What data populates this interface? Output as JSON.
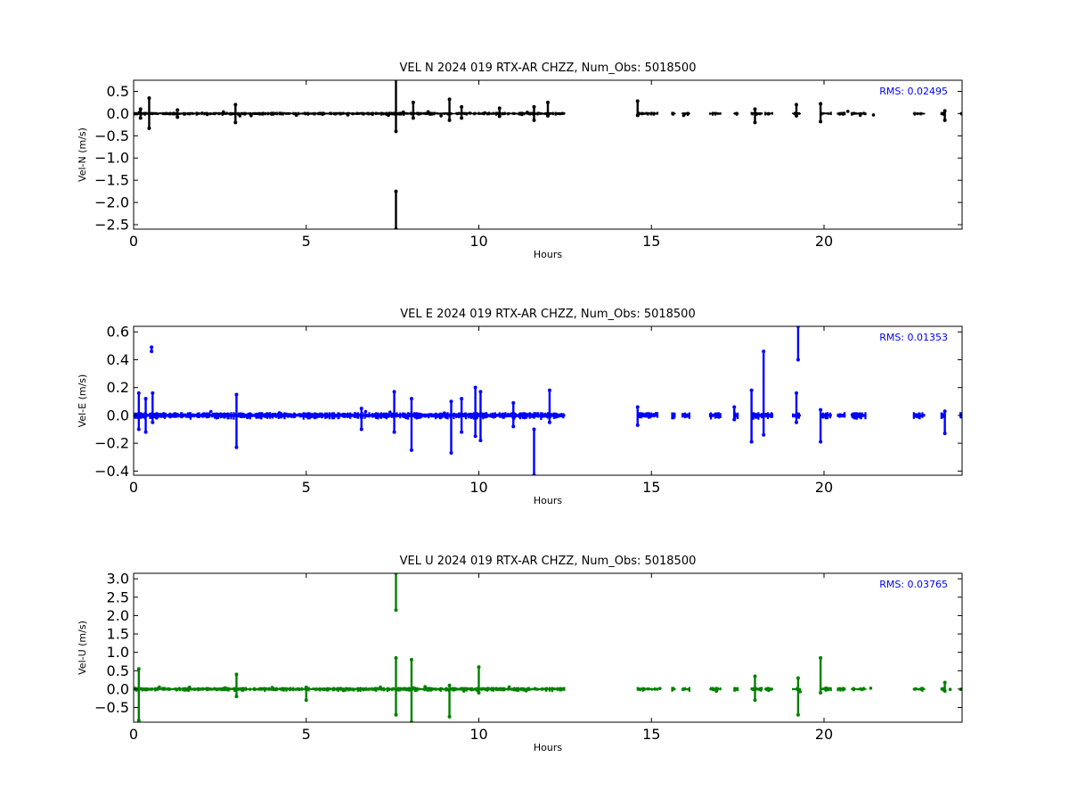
{
  "figure": {
    "background": "#ffffff"
  },
  "chart_data": [
    {
      "type": "scatter",
      "title": "VEL N 2024 019 RTX-AR  CHZZ, Num_Obs: 5018500",
      "xlabel": "Hours",
      "ylabel": "Vel-N (m/s)",
      "xlim": [
        0,
        24
      ],
      "ylim": [
        -2.6,
        0.75
      ],
      "xticks": [
        0,
        5,
        10,
        15,
        20
      ],
      "yticks": [
        0.5,
        0.0,
        -0.5,
        -1.0,
        -1.5,
        -2.0,
        -2.5
      ],
      "ytick_labels": [
        "0.5",
        "0.0",
        "−0.5",
        "−1.0",
        "−1.5",
        "−2.0",
        "−2.5"
      ],
      "color": "#000000",
      "rms_label": "RMS:  0.02495",
      "rms_color": "#0000ff",
      "grid": false,
      "series": [
        {
          "noise_amplitude": 0.02,
          "segments": [
            [
              0.0,
              12.5
            ],
            [
              14.6,
              15.2
            ],
            [
              15.6,
              15.7
            ],
            [
              15.9,
              16.1
            ],
            [
              16.7,
              17.0
            ],
            [
              17.4,
              17.5
            ],
            [
              17.9,
              18.2
            ],
            [
              18.3,
              18.5
            ],
            [
              19.1,
              19.3
            ],
            [
              19.9,
              20.2
            ],
            [
              20.4,
              20.6
            ],
            [
              20.8,
              21.2
            ],
            [
              22.6,
              22.9
            ],
            [
              23.4,
              23.5
            ],
            [
              23.95,
              24.0
            ]
          ],
          "spikes": [
            [
              0.45,
              -0.33,
              0.35
            ],
            [
              0.2,
              -0.1,
              0.1
            ],
            [
              1.27,
              -0.08,
              0.08
            ],
            [
              2.95,
              -0.2,
              0.2
            ],
            [
              7.6,
              -0.4,
              0.8
            ],
            [
              7.6,
              -2.6,
              -1.75
            ],
            [
              8.1,
              -0.1,
              0.25
            ],
            [
              9.15,
              -0.15,
              0.32
            ],
            [
              9.5,
              -0.1,
              0.15
            ],
            [
              10.6,
              -0.06,
              0.12
            ],
            [
              11.6,
              -0.15,
              0.15
            ],
            [
              12.0,
              -0.05,
              0.25
            ],
            [
              14.6,
              -0.04,
              0.28
            ],
            [
              18.0,
              -0.2,
              0.1
            ],
            [
              19.2,
              -0.05,
              0.2
            ],
            [
              19.9,
              -0.18,
              0.22
            ],
            [
              23.5,
              -0.15,
              0.06
            ]
          ]
        }
      ]
    },
    {
      "type": "scatter",
      "title": "VEL E 2024 019 RTX-AR  CHZZ, Num_Obs: 5018500",
      "xlabel": "Hours",
      "ylabel": "Vel-E (m/s)",
      "xlim": [
        0,
        24
      ],
      "ylim": [
        -0.43,
        0.64
      ],
      "xticks": [
        0,
        5,
        10,
        15,
        20
      ],
      "yticks": [
        0.6,
        0.4,
        0.2,
        0.0,
        -0.2,
        -0.4
      ],
      "ytick_labels": [
        "0.6",
        "0.4",
        "0.2",
        "0.0",
        "−0.2",
        "−0.4"
      ],
      "color": "#0000ff",
      "rms_label": "RMS:  0.01353",
      "rms_color": "#0000ff",
      "grid": false,
      "series": [
        {
          "noise_amplitude": 0.012,
          "segments": [
            [
              0.0,
              12.5
            ],
            [
              14.6,
              15.2
            ],
            [
              15.6,
              15.7
            ],
            [
              15.9,
              16.1
            ],
            [
              16.7,
              17.0
            ],
            [
              17.4,
              17.5
            ],
            [
              17.9,
              18.2
            ],
            [
              18.3,
              18.5
            ],
            [
              19.1,
              19.3
            ],
            [
              19.9,
              20.2
            ],
            [
              20.4,
              20.6
            ],
            [
              20.8,
              21.2
            ],
            [
              22.6,
              22.9
            ],
            [
              23.4,
              23.5
            ],
            [
              23.95,
              24.0
            ]
          ],
          "spikes": [
            [
              0.15,
              -0.1,
              0.16
            ],
            [
              0.35,
              -0.12,
              0.12
            ],
            [
              0.52,
              0.46,
              0.49
            ],
            [
              0.55,
              -0.05,
              0.16
            ],
            [
              2.98,
              -0.23,
              0.15
            ],
            [
              6.6,
              -0.1,
              0.05
            ],
            [
              7.55,
              -0.12,
              0.17
            ],
            [
              8.05,
              -0.25,
              0.12
            ],
            [
              9.2,
              -0.27,
              0.1
            ],
            [
              9.5,
              -0.12,
              0.12
            ],
            [
              9.9,
              -0.15,
              0.2
            ],
            [
              10.05,
              -0.18,
              0.17
            ],
            [
              11.0,
              -0.08,
              0.09
            ],
            [
              11.6,
              -0.43,
              -0.1
            ],
            [
              12.05,
              -0.05,
              0.18
            ],
            [
              14.6,
              -0.07,
              0.06
            ],
            [
              17.4,
              -0.03,
              0.06
            ],
            [
              17.9,
              -0.19,
              0.18
            ],
            [
              18.25,
              -0.14,
              0.46
            ],
            [
              19.25,
              0.4,
              0.64
            ],
            [
              19.2,
              -0.05,
              0.16
            ],
            [
              19.9,
              -0.19,
              0.04
            ],
            [
              23.5,
              -0.13,
              0.03
            ]
          ]
        }
      ]
    },
    {
      "type": "scatter",
      "title": "VEL U 2024 019 RTX-AR  CHZZ, Num_Obs: 5018500",
      "xlabel": "Hours",
      "ylabel": "Vel-U (m/s)",
      "xlim": [
        0,
        24
      ],
      "ylim": [
        -0.9,
        3.15
      ],
      "xticks": [
        0,
        5,
        10,
        15,
        20
      ],
      "yticks": [
        3.0,
        2.5,
        2.0,
        1.5,
        1.0,
        0.5,
        0.0,
        -0.5
      ],
      "ytick_labels": [
        "3.0",
        "2.5",
        "2.0",
        "1.5",
        "1.0",
        "0.5",
        "0.0",
        "−0.5"
      ],
      "color": "#008000",
      "rms_label": "RMS:  0.03765",
      "rms_color": "#0000ff",
      "grid": false,
      "series": [
        {
          "noise_amplitude": 0.03,
          "segments": [
            [
              0.0,
              12.5
            ],
            [
              14.6,
              15.2
            ],
            [
              15.6,
              15.7
            ],
            [
              15.9,
              16.1
            ],
            [
              16.7,
              17.0
            ],
            [
              17.4,
              17.5
            ],
            [
              17.9,
              18.2
            ],
            [
              18.3,
              18.5
            ],
            [
              19.1,
              19.3
            ],
            [
              19.9,
              20.2
            ],
            [
              20.4,
              20.6
            ],
            [
              20.8,
              21.2
            ],
            [
              22.6,
              22.9
            ],
            [
              23.4,
              23.5
            ],
            [
              23.95,
              24.0
            ]
          ],
          "spikes": [
            [
              0.15,
              -0.85,
              0.55
            ],
            [
              2.98,
              -0.2,
              0.4
            ],
            [
              5.0,
              -0.3,
              0.05
            ],
            [
              7.6,
              2.15,
              3.15
            ],
            [
              7.6,
              -0.7,
              0.85
            ],
            [
              8.05,
              -0.9,
              0.8
            ],
            [
              9.15,
              -0.75,
              0.1
            ],
            [
              10.0,
              -0.1,
              0.6
            ],
            [
              18.0,
              -0.3,
              0.35
            ],
            [
              19.25,
              -0.7,
              0.3
            ],
            [
              19.9,
              -0.1,
              0.85
            ],
            [
              23.5,
              -0.05,
              0.18
            ]
          ]
        }
      ]
    }
  ]
}
